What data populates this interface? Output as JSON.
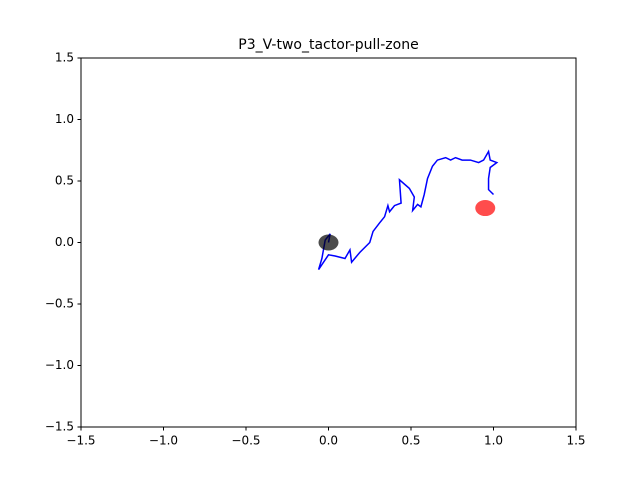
{
  "chart_data": {
    "type": "line",
    "title": "P3_V-two_tactor-pull-zone",
    "series": [
      {
        "color": "#0000ff",
        "x": [
          0,
          0.01,
          -0.02,
          -0.04,
          -0.06,
          -0.03,
          0,
          0.04,
          0.1,
          0.13,
          0.14,
          0.19,
          0.25,
          0.27,
          0.31,
          0.34,
          0.36,
          0.37,
          0.4,
          0.44,
          0.43,
          0.49,
          0.52,
          0.51,
          0.54,
          0.56,
          0.58,
          0.6,
          0.63,
          0.66,
          0.71,
          0.74,
          0.77,
          0.81,
          0.86,
          0.91,
          0.94,
          0.97,
          0.98,
          1.02,
          0.98,
          0.97,
          0.97,
          1.0
        ],
        "values": [
          0,
          0.07,
          0.02,
          -0.13,
          -0.22,
          -0.16,
          -0.1,
          -0.11,
          -0.13,
          -0.06,
          -0.16,
          -0.08,
          0.0,
          0.09,
          0.16,
          0.21,
          0.3,
          0.25,
          0.3,
          0.32,
          0.51,
          0.44,
          0.37,
          0.26,
          0.31,
          0.29,
          0.39,
          0.52,
          0.62,
          0.67,
          0.69,
          0.67,
          0.69,
          0.67,
          0.67,
          0.65,
          0.67,
          0.74,
          0.67,
          0.65,
          0.61,
          0.52,
          0.43,
          0.39
        ]
      }
    ],
    "points": [
      {
        "x": 0,
        "y": 0,
        "color": "#000000"
      },
      {
        "x": 0.95,
        "y": 0.28,
        "color": "#ff0000"
      }
    ],
    "xlim": [
      -1.5,
      1.5
    ],
    "ylim": [
      -1.5,
      1.5
    ],
    "xticks": [
      {
        "value": -1.5,
        "label": "−1.5"
      },
      {
        "value": -1.0,
        "label": "−1.0"
      },
      {
        "value": -0.5,
        "label": "−0.5"
      },
      {
        "value": 0,
        "label": "0.0"
      },
      0.5,
      {
        "value": 1.0,
        "label": "1.0"
      },
      1.5
    ],
    "yticks": [
      {
        "value": -1.5,
        "label": "−1.5"
      },
      {
        "value": -1.0,
        "label": "−1.0"
      },
      {
        "value": -0.5,
        "label": "−0.5"
      },
      {
        "value": 0,
        "label": "0.0"
      },
      0.5,
      {
        "value": 1.0,
        "label": "1.0"
      },
      1.5
    ]
  }
}
